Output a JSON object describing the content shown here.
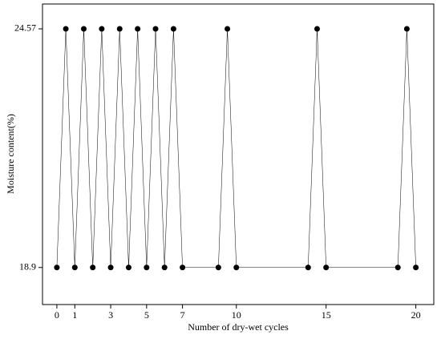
{
  "chart_data": {
    "type": "line",
    "xlabel": "Number of dry-wet cycles",
    "ylabel": "Moisture content(%)",
    "x": [
      0,
      0.5,
      1,
      1.5,
      2,
      2.5,
      3,
      3.5,
      4,
      4.5,
      5,
      5.5,
      6,
      6.5,
      7,
      9,
      9.5,
      10,
      14,
      14.5,
      15,
      19,
      19.5,
      20
    ],
    "series": [
      {
        "color": "#000000",
        "values": [
          18.9,
          24.57,
          18.9,
          24.57,
          18.9,
          24.57,
          18.9,
          24.57,
          18.9,
          24.57,
          18.9,
          24.57,
          18.9,
          24.57,
          18.9,
          18.9,
          24.57,
          18.9,
          18.9,
          24.57,
          18.9,
          18.9,
          24.57,
          18.9
        ]
      }
    ],
    "xlim": [
      -0.8,
      21
    ],
    "ylim": [
      18.02,
      25.16
    ],
    "xticks": [
      0,
      1,
      3,
      5,
      7,
      10,
      15,
      20
    ],
    "yticks": [
      18.9,
      24.57
    ]
  }
}
